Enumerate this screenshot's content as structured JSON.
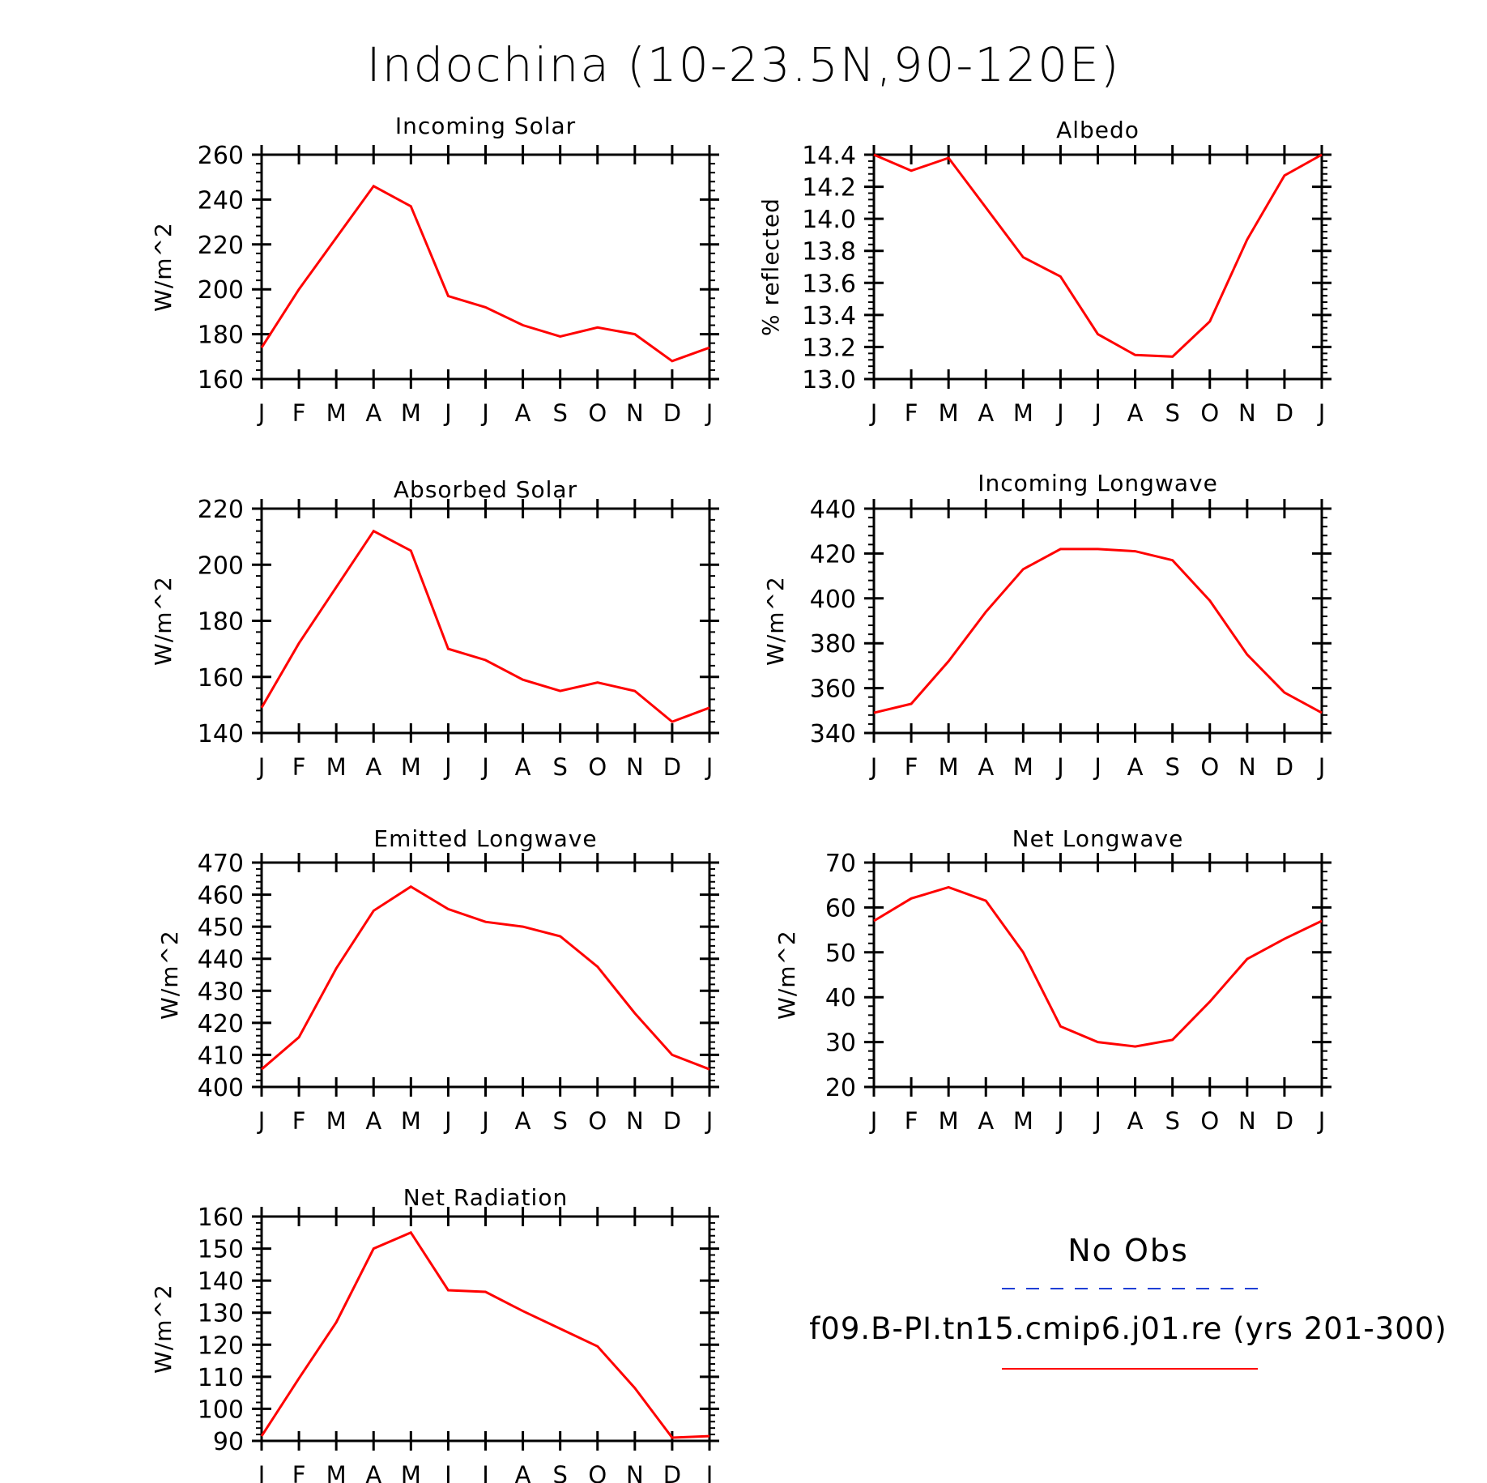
{
  "figure": {
    "title": "Indochina (10-23.5N,90-120E)",
    "legend": {
      "obs_label": "No Obs",
      "obs_color": "#1f3fd6",
      "model_label": "f09.B-PI.tn15.cmip6.j01.re (yrs 201-300)",
      "model_color": "#ff0000"
    },
    "line_color": "#ff0000"
  },
  "chart_data": [
    {
      "type": "line",
      "title": "Incoming Solar",
      "ylabel": "W/m^2",
      "xlabel": "",
      "categories": [
        "J",
        "F",
        "M",
        "A",
        "M",
        "J",
        "J",
        "A",
        "S",
        "O",
        "N",
        "D",
        "J"
      ],
      "ylim": [
        160,
        260
      ],
      "yticks": [
        160,
        180,
        200,
        220,
        240,
        260
      ],
      "series": [
        {
          "values": [
            174,
            200,
            223,
            246,
            237,
            197,
            192,
            184,
            179,
            183,
            180,
            168,
            174
          ]
        }
      ]
    },
    {
      "type": "line",
      "title": "Albedo",
      "ylabel": "% reflected",
      "xlabel": "",
      "categories": [
        "J",
        "F",
        "M",
        "A",
        "M",
        "J",
        "J",
        "A",
        "S",
        "O",
        "N",
        "D",
        "J"
      ],
      "ylim": [
        13.0,
        14.4
      ],
      "yticks": [
        13.0,
        13.2,
        13.4,
        13.6,
        13.8,
        14.0,
        14.2,
        14.4
      ],
      "ytick_decimals": 1,
      "series": [
        {
          "values": [
            14.4,
            14.3,
            14.38,
            14.07,
            13.76,
            13.64,
            13.28,
            13.15,
            13.14,
            13.36,
            13.87,
            14.27,
            14.4
          ]
        }
      ]
    },
    {
      "type": "line",
      "title": "Absorbed Solar",
      "ylabel": "W/m^2",
      "xlabel": "",
      "categories": [
        "J",
        "F",
        "M",
        "A",
        "M",
        "J",
        "J",
        "A",
        "S",
        "O",
        "N",
        "D",
        "J"
      ],
      "ylim": [
        140,
        220
      ],
      "yticks": [
        140,
        160,
        180,
        200,
        220
      ],
      "series": [
        {
          "values": [
            149,
            172,
            192,
            212,
            205,
            170,
            166,
            159,
            155,
            158,
            155,
            144,
            149
          ]
        }
      ]
    },
    {
      "type": "line",
      "title": "Incoming Longwave",
      "ylabel": "W/m^2",
      "xlabel": "",
      "categories": [
        "J",
        "F",
        "M",
        "A",
        "M",
        "J",
        "J",
        "A",
        "S",
        "O",
        "N",
        "D",
        "J"
      ],
      "ylim": [
        340,
        440
      ],
      "yticks": [
        340,
        360,
        380,
        400,
        420,
        440
      ],
      "series": [
        {
          "values": [
            349,
            353,
            372,
            394,
            413,
            422,
            422,
            421,
            417,
            399,
            375,
            358,
            349
          ]
        }
      ]
    },
    {
      "type": "line",
      "title": "Emitted Longwave",
      "ylabel": "W/m^2",
      "xlabel": "",
      "categories": [
        "J",
        "F",
        "M",
        "A",
        "M",
        "J",
        "J",
        "A",
        "S",
        "O",
        "N",
        "D",
        "J"
      ],
      "ylim": [
        400,
        470
      ],
      "yticks": [
        400,
        410,
        420,
        430,
        440,
        450,
        460,
        470
      ],
      "series": [
        {
          "values": [
            405.5,
            415.5,
            437,
            455,
            462.5,
            455.5,
            451.5,
            450,
            447,
            437.5,
            423,
            410,
            405.5
          ]
        }
      ]
    },
    {
      "type": "line",
      "title": "Net Longwave",
      "ylabel": "W/m^2",
      "xlabel": "",
      "categories": [
        "J",
        "F",
        "M",
        "A",
        "M",
        "J",
        "J",
        "A",
        "S",
        "O",
        "N",
        "D",
        "J"
      ],
      "ylim": [
        20,
        70
      ],
      "yticks": [
        20,
        30,
        40,
        50,
        60,
        70
      ],
      "series": [
        {
          "values": [
            57,
            62,
            64.5,
            61.5,
            50,
            33.5,
            30,
            29,
            30.5,
            39,
            48.5,
            53,
            57
          ]
        }
      ]
    },
    {
      "type": "line",
      "title": "Net Radiation",
      "ylabel": "W/m^2",
      "xlabel": "",
      "categories": [
        "J",
        "F",
        "M",
        "A",
        "M",
        "J",
        "J",
        "A",
        "S",
        "O",
        "N",
        "D",
        "J"
      ],
      "ylim": [
        90,
        160
      ],
      "yticks": [
        90,
        100,
        110,
        120,
        130,
        140,
        150,
        160
      ],
      "series": [
        {
          "values": [
            91.5,
            109.5,
            127,
            150,
            155,
            137,
            136.5,
            130.5,
            125,
            119.5,
            106.5,
            91,
            91.5
          ]
        }
      ]
    }
  ]
}
